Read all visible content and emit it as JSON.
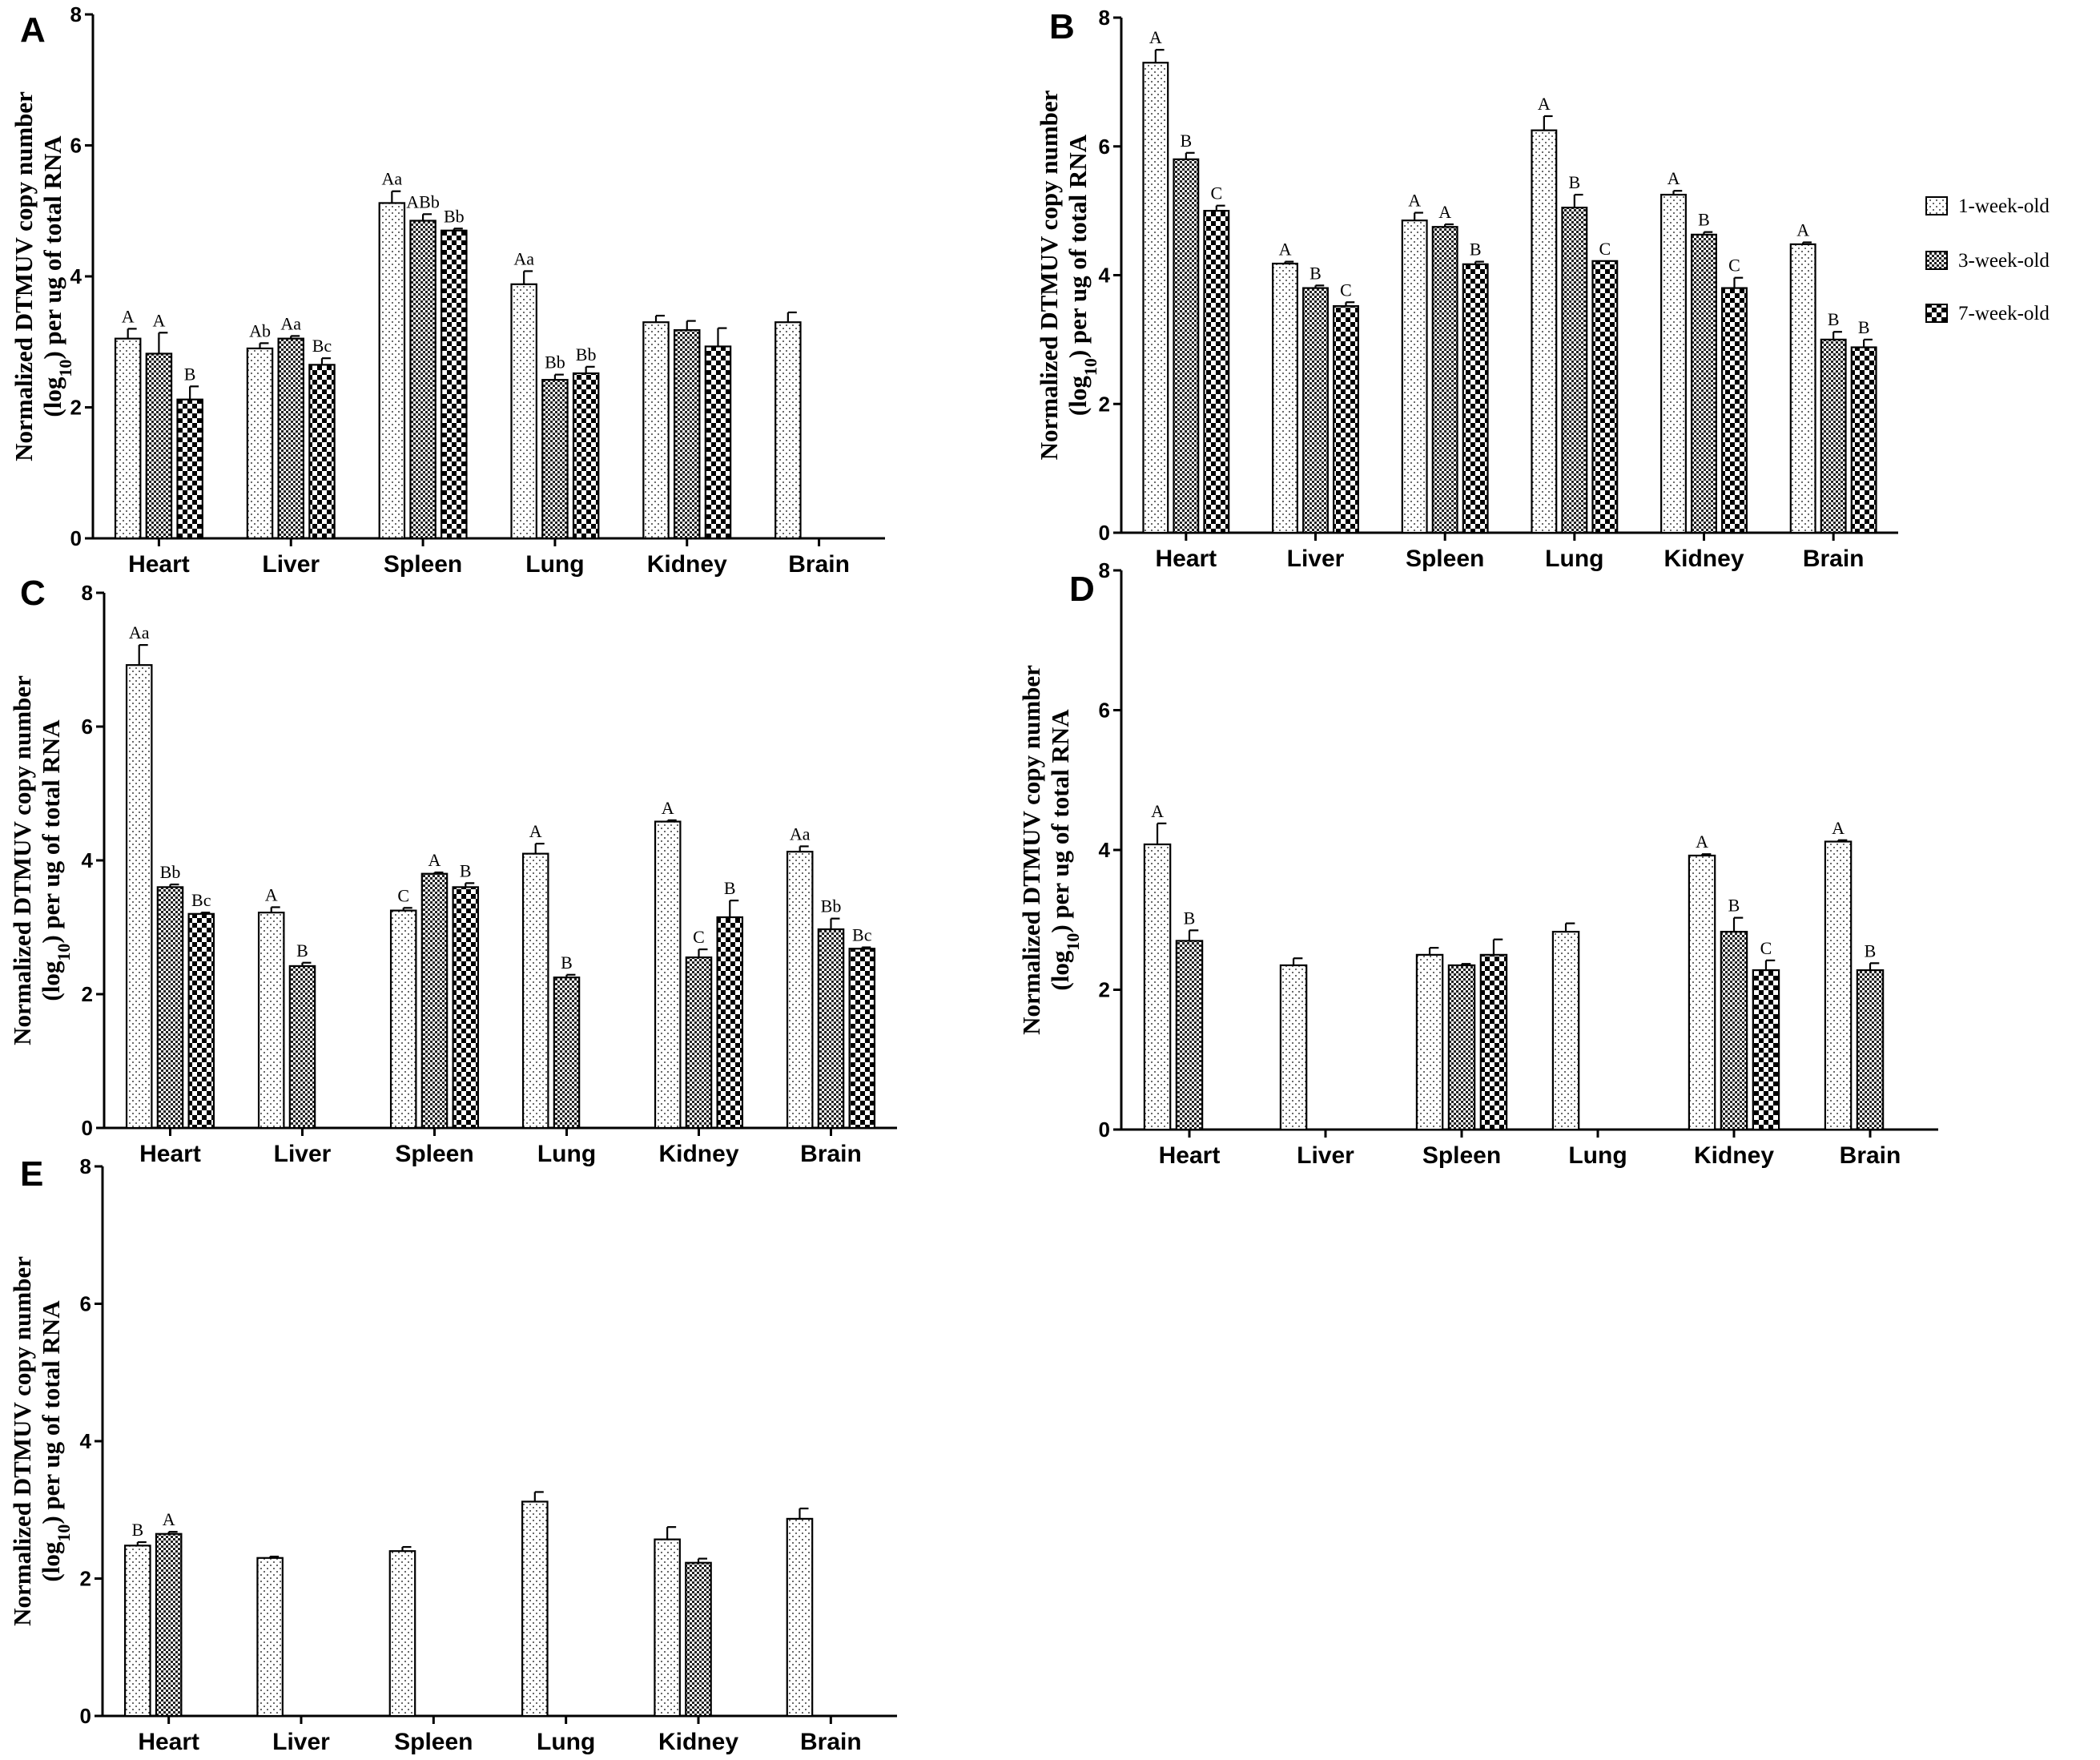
{
  "figure": {
    "y_axis_label": "Normalized DTMUV copy number",
    "y_axis_label_line2_prefix": "(log",
    "y_axis_label_line2_sub": "10",
    "y_axis_label_line2_suffix": ") per ug of total RNA",
    "legend": [
      "1-week-old",
      "3-week-old",
      "7-week-old"
    ],
    "colors": {
      "axis": "#000000",
      "bar_fill": "#ffffff",
      "bar_pattern": "#000000"
    }
  },
  "chart_data": [
    {
      "panel": "A",
      "type": "bar",
      "categories": [
        "Heart",
        "Liver",
        "Spleen",
        "Lung",
        "Kidney",
        "Brain"
      ],
      "ylim": [
        0,
        8
      ],
      "yticks": [
        0,
        2,
        4,
        6,
        8
      ],
      "series": [
        {
          "name": "1-week-old",
          "values": [
            3.05,
            2.9,
            5.12,
            3.88,
            3.3,
            3.3
          ],
          "errors": [
            0.15,
            0.08,
            0.18,
            0.2,
            0.1,
            0.15
          ],
          "labels": [
            "A",
            "Ab",
            "Aa",
            "Aa",
            "",
            ""
          ]
        },
        {
          "name": "3-week-old",
          "values": [
            2.82,
            3.05,
            4.85,
            2.42,
            3.18,
            null
          ],
          "errors": [
            0.32,
            0.04,
            0.1,
            0.08,
            0.14,
            null
          ],
          "labels": [
            "A",
            "Aa",
            "ABb",
            "Bb",
            "",
            ""
          ]
        },
        {
          "name": "7-week-old",
          "values": [
            2.12,
            2.65,
            4.7,
            2.52,
            2.93,
            null
          ],
          "errors": [
            0.2,
            0.1,
            0.03,
            0.1,
            0.28,
            null
          ],
          "labels": [
            "B",
            "Bc",
            "Bb",
            "Bb",
            "",
            ""
          ]
        }
      ]
    },
    {
      "panel": "B",
      "type": "bar",
      "categories": [
        "Heart",
        "Liver",
        "Spleen",
        "Lung",
        "Kidney",
        "Brain"
      ],
      "ylim": [
        0,
        8
      ],
      "yticks": [
        0,
        2,
        4,
        6,
        8
      ],
      "series": [
        {
          "name": "1-week-old",
          "values": [
            7.3,
            4.18,
            4.85,
            6.25,
            5.25,
            4.48
          ],
          "errors": [
            0.2,
            0.03,
            0.12,
            0.22,
            0.06,
            0.03
          ],
          "labels": [
            "A",
            "A",
            "A",
            "A",
            "A",
            "A"
          ]
        },
        {
          "name": "3-week-old",
          "values": [
            5.8,
            3.8,
            4.75,
            5.05,
            4.63,
            3.0
          ],
          "errors": [
            0.1,
            0.04,
            0.04,
            0.2,
            0.04,
            0.12
          ],
          "labels": [
            "B",
            "B",
            "A",
            "B",
            "B",
            "B"
          ]
        },
        {
          "name": "7-week-old",
          "values": [
            5.0,
            3.52,
            4.17,
            4.22,
            3.8,
            2.88
          ],
          "errors": [
            0.08,
            0.06,
            0.04,
            0.0,
            0.16,
            0.12
          ],
          "labels": [
            "C",
            "C",
            "B",
            "C",
            "C",
            "B"
          ]
        }
      ]
    },
    {
      "panel": "C",
      "type": "bar",
      "categories": [
        "Heart",
        "Liver",
        "Spleen",
        "Lung",
        "Kidney",
        "Brain"
      ],
      "ylim": [
        0,
        8
      ],
      "yticks": [
        0,
        2,
        4,
        6,
        8
      ],
      "series": [
        {
          "name": "1-week-old",
          "values": [
            6.92,
            3.22,
            3.25,
            4.1,
            4.58,
            4.13
          ],
          "errors": [
            0.3,
            0.08,
            0.04,
            0.15,
            0.02,
            0.08
          ],
          "labels": [
            "Aa",
            "A",
            "C",
            "A",
            "A",
            "Aa"
          ]
        },
        {
          "name": "3-week-old",
          "values": [
            3.6,
            2.42,
            3.8,
            2.25,
            2.55,
            2.97
          ],
          "errors": [
            0.04,
            0.05,
            0.02,
            0.04,
            0.12,
            0.16
          ],
          "labels": [
            "Bb",
            "B",
            "A",
            "B",
            "C",
            "Bb"
          ]
        },
        {
          "name": "7-week-old",
          "values": [
            3.2,
            null,
            3.6,
            null,
            3.15,
            2.68
          ],
          "errors": [
            0.02,
            null,
            0.06,
            null,
            0.25,
            0.02
          ],
          "labels": [
            "Bc",
            "",
            "B",
            "",
            "B",
            "Bc"
          ]
        }
      ]
    },
    {
      "panel": "D",
      "type": "bar",
      "categories": [
        "Heart",
        "Liver",
        "Spleen",
        "Lung",
        "Kidney",
        "Brain"
      ],
      "ylim": [
        0,
        8
      ],
      "yticks": [
        0,
        2,
        4,
        6,
        8
      ],
      "series": [
        {
          "name": "1-week-old",
          "values": [
            4.08,
            2.35,
            2.5,
            2.83,
            3.92,
            4.12
          ],
          "errors": [
            0.3,
            0.1,
            0.1,
            0.12,
            0.02,
            0.02
          ],
          "labels": [
            "A",
            "",
            "",
            "",
            "A",
            "A"
          ]
        },
        {
          "name": "3-week-old",
          "values": [
            2.7,
            null,
            2.35,
            null,
            2.83,
            2.28
          ],
          "errors": [
            0.15,
            null,
            0.02,
            null,
            0.2,
            0.1
          ],
          "labels": [
            "B",
            "",
            "",
            "",
            "B",
            "B"
          ]
        },
        {
          "name": "7-week-old",
          "values": [
            null,
            null,
            2.5,
            null,
            2.28,
            null
          ],
          "errors": [
            null,
            null,
            0.22,
            null,
            0.14,
            null
          ],
          "labels": [
            "",
            "",
            "",
            "",
            "C",
            ""
          ]
        }
      ]
    },
    {
      "panel": "E",
      "type": "bar",
      "categories": [
        "Heart",
        "Liver",
        "Spleen",
        "Lung",
        "Kidney",
        "Brain"
      ],
      "ylim": [
        0,
        8
      ],
      "yticks": [
        0,
        2,
        4,
        6,
        8
      ],
      "series": [
        {
          "name": "1-week-old",
          "values": [
            2.48,
            2.3,
            2.4,
            3.12,
            2.57,
            2.87
          ],
          "errors": [
            0.05,
            0.02,
            0.06,
            0.14,
            0.18,
            0.15
          ],
          "labels": [
            "B",
            "",
            "",
            "",
            "",
            ""
          ]
        },
        {
          "name": "3-week-old",
          "values": [
            2.65,
            null,
            null,
            null,
            2.23,
            null
          ],
          "errors": [
            0.03,
            null,
            null,
            null,
            0.06,
            null
          ],
          "labels": [
            "A",
            "",
            "",
            "",
            "",
            ""
          ]
        },
        {
          "name": "7-week-old",
          "values": [
            null,
            null,
            null,
            null,
            null,
            null
          ],
          "errors": [
            null,
            null,
            null,
            null,
            null,
            null
          ],
          "labels": [
            "",
            "",
            "",
            "",
            "",
            ""
          ]
        }
      ]
    }
  ]
}
